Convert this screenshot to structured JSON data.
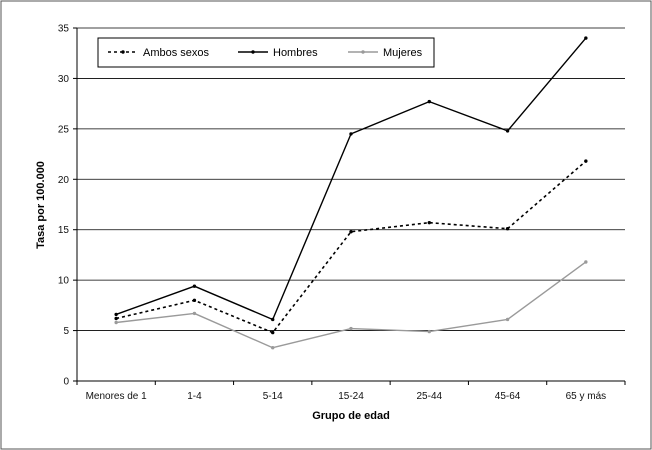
{
  "chart_data": {
    "type": "line",
    "categories": [
      "Menores de 1",
      "1-4",
      "5-14",
      "15-24",
      "25-44",
      "45-64",
      "65 y más"
    ],
    "series": [
      {
        "name": "Ambos sexos",
        "values": [
          6.2,
          8.0,
          4.8,
          14.8,
          15.7,
          15.1,
          21.8
        ],
        "color": "#000000",
        "style": "dotted"
      },
      {
        "name": "Hombres",
        "values": [
          6.6,
          9.4,
          6.1,
          24.5,
          27.7,
          24.8,
          34.0
        ],
        "color": "#000000",
        "style": "solid"
      },
      {
        "name": "Mujeres",
        "values": [
          5.8,
          6.7,
          3.3,
          5.2,
          4.9,
          6.1,
          11.8
        ],
        "color": "#9a9a9a",
        "style": "solid"
      }
    ],
    "xlabel": "Grupo de edad",
    "ylabel": "Tasa por 100.000",
    "ylim": [
      0,
      35
    ],
    "yticks": [
      0,
      5,
      10,
      15,
      20,
      25,
      30,
      35
    ],
    "grid": "horizontal",
    "legend_position": "top-left"
  }
}
